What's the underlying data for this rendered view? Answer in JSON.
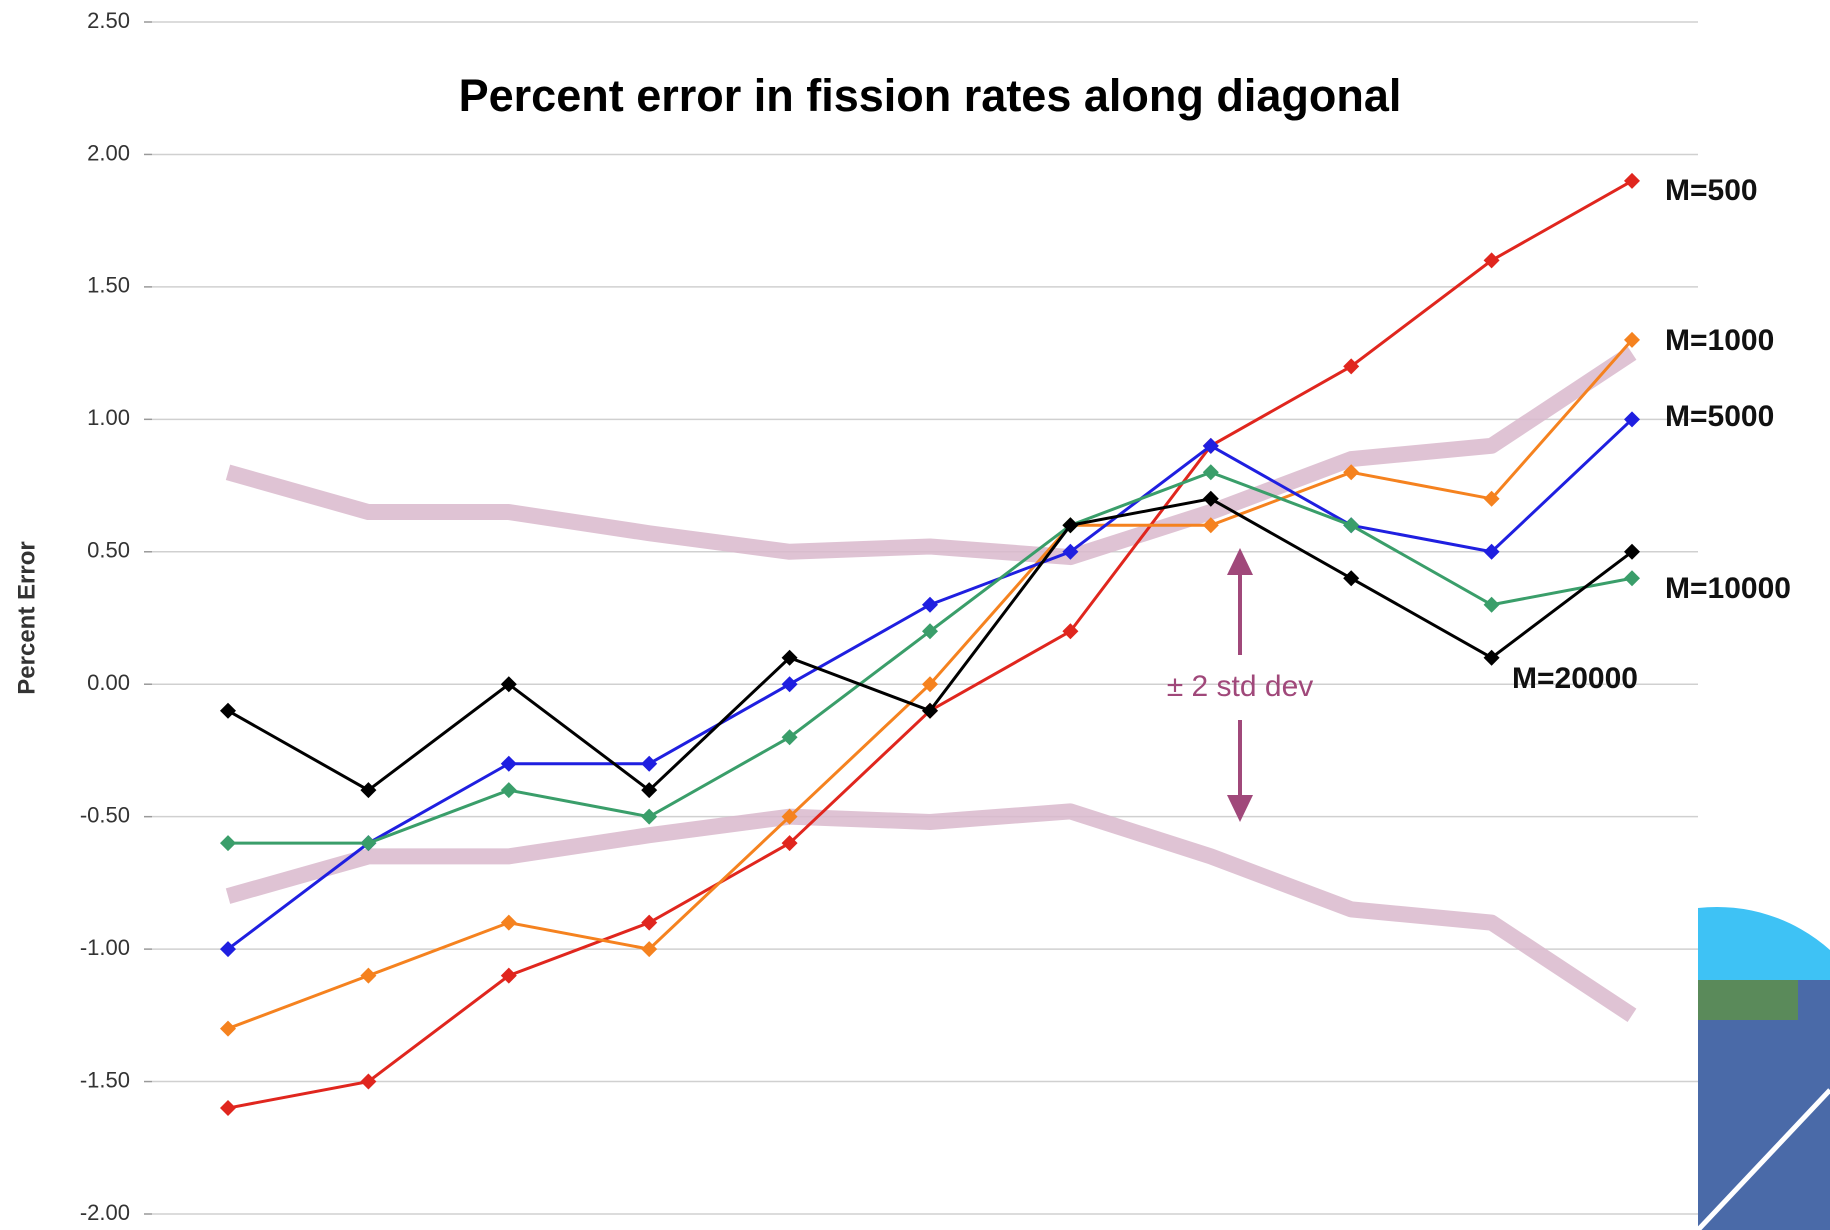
{
  "chart_data": {
    "type": "line",
    "title": "Percent error in fission rates along diagonal",
    "ylabel": "Percent Error",
    "categories": [
      null,
      null,
      null,
      null,
      null,
      null,
      null,
      null,
      null,
      null,
      null
    ],
    "ylim": [
      -2.0,
      2.5
    ],
    "yticks": [
      {
        "value": -2.0,
        "label": "-2.00"
      },
      {
        "value": -1.5,
        "label": "-1.50"
      },
      {
        "value": -1.0,
        "label": "-1.00"
      },
      {
        "value": -0.5,
        "label": "-0.50"
      },
      {
        "value": 0,
        "label": "0.00"
      },
      {
        "value": 0.5,
        "label": "0.50"
      },
      {
        "value": 1.0,
        "label": "1.00"
      },
      {
        "value": 1.5,
        "label": "1.50"
      },
      {
        "value": 2.0,
        "label": "2.00"
      },
      {
        "value": 2.5,
        "label": "2.50"
      }
    ],
    "grid": true,
    "band": {
      "label": "± 2 std dev",
      "color": "#d9b8cc",
      "annotation_color": "#a0487a",
      "upper": [
        0.8,
        0.65,
        0.65,
        0.57,
        0.5,
        0.52,
        0.48,
        0.65,
        0.85,
        0.9,
        1.25
      ],
      "lower": [
        -0.8,
        -0.65,
        -0.65,
        -0.57,
        -0.5,
        -0.52,
        -0.48,
        -0.65,
        -0.85,
        -0.9,
        -1.25
      ]
    },
    "series": [
      {
        "name": "M=500",
        "color": "#e0261e",
        "values": [
          -1.6,
          -1.5,
          -1.1,
          -0.9,
          -0.6,
          -0.1,
          0.2,
          0.9,
          1.2,
          1.6,
          1.9
        ]
      },
      {
        "name": "M=1000",
        "color": "#f5821f",
        "values": [
          -1.3,
          -1.1,
          -0.9,
          -1.0,
          -0.5,
          0.0,
          0.6,
          0.6,
          0.8,
          0.7,
          1.3
        ]
      },
      {
        "name": "M=5000",
        "color": "#1f1fe0",
        "values": [
          -1.0,
          -0.6,
          -0.3,
          -0.3,
          0.0,
          0.3,
          0.5,
          0.9,
          0.6,
          0.5,
          1.0
        ]
      },
      {
        "name": "M=10000",
        "color": "#3a9e6a",
        "values": [
          -0.6,
          -0.6,
          -0.4,
          -0.5,
          -0.2,
          0.2,
          0.6,
          0.8,
          0.6,
          0.3,
          0.4
        ]
      },
      {
        "name": "M=20000",
        "color": "#000000",
        "values": [
          -0.1,
          -0.4,
          0.0,
          -0.4,
          0.1,
          -0.1,
          0.6,
          0.7,
          0.4,
          0.1,
          0.5
        ]
      }
    ]
  }
}
